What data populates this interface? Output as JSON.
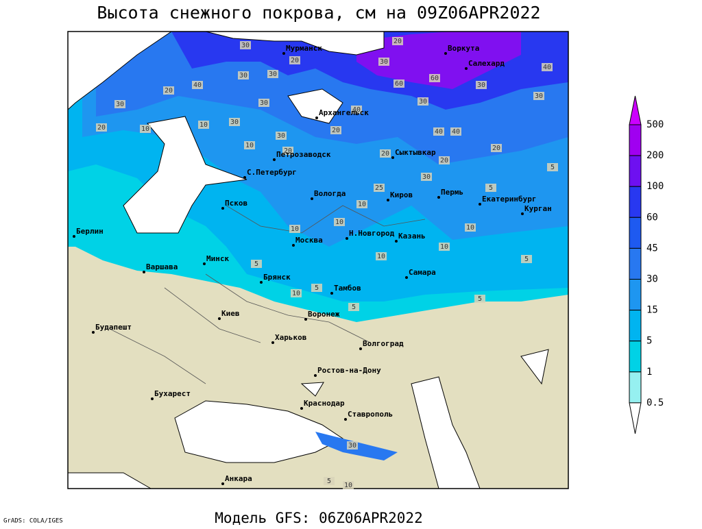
{
  "header": {
    "title": "Высота снежного покрова, см на 09Z06APR2022"
  },
  "map": {
    "cities": [
      "Мурманск",
      "Воркута",
      "Салехард",
      "Архангельск",
      "Сыктывкар",
      "Петрозаводск",
      "С.Петербург",
      "Вологда",
      "Киров",
      "Пермь",
      "Екатеринбург",
      "Курган",
      "Псков",
      "Берлин",
      "Н.Новгород",
      "Москва",
      "Казань",
      "Минск",
      "Варшава",
      "Брянск",
      "Тамбов",
      "Самара",
      "Киев",
      "Воронеж",
      "Будапешт",
      "Харьков",
      "Волгоград",
      "Ростов-на-Дону",
      "Бухарест",
      "Краснодар",
      "Ставрополь",
      "Анкара"
    ],
    "contour_labels": [
      "30",
      "20",
      "30",
      "20",
      "30",
      "30",
      "40",
      "20",
      "30",
      "20",
      "10",
      "60",
      "60",
      "30",
      "30",
      "40",
      "30",
      "30",
      "30",
      "10",
      "30",
      "20",
      "40",
      "40",
      "40",
      "20",
      "10",
      "20",
      "20",
      "20",
      "30",
      "25",
      "10",
      "5",
      "5",
      "10",
      "10",
      "10",
      "10",
      "10",
      "5",
      "5",
      "5",
      "10",
      "5",
      "5",
      "30",
      "5",
      "10"
    ]
  },
  "legend": {
    "levels": [
      "500",
      "200",
      "100",
      "60",
      "45",
      "30",
      "15",
      "5",
      "1",
      "0.5"
    ],
    "colors": [
      "#cc00ff",
      "#a000f0",
      "#6e10f0",
      "#2838f0",
      "#1e5af0",
      "#2878f0",
      "#1e96f0",
      "#00b4f0",
      "#00d2e6",
      "#96f0f0",
      "#ffffff"
    ]
  },
  "footer": {
    "model": "Модель GFS: 06Z06APR2022",
    "credit": "GrADS: COLA/IGES"
  }
}
